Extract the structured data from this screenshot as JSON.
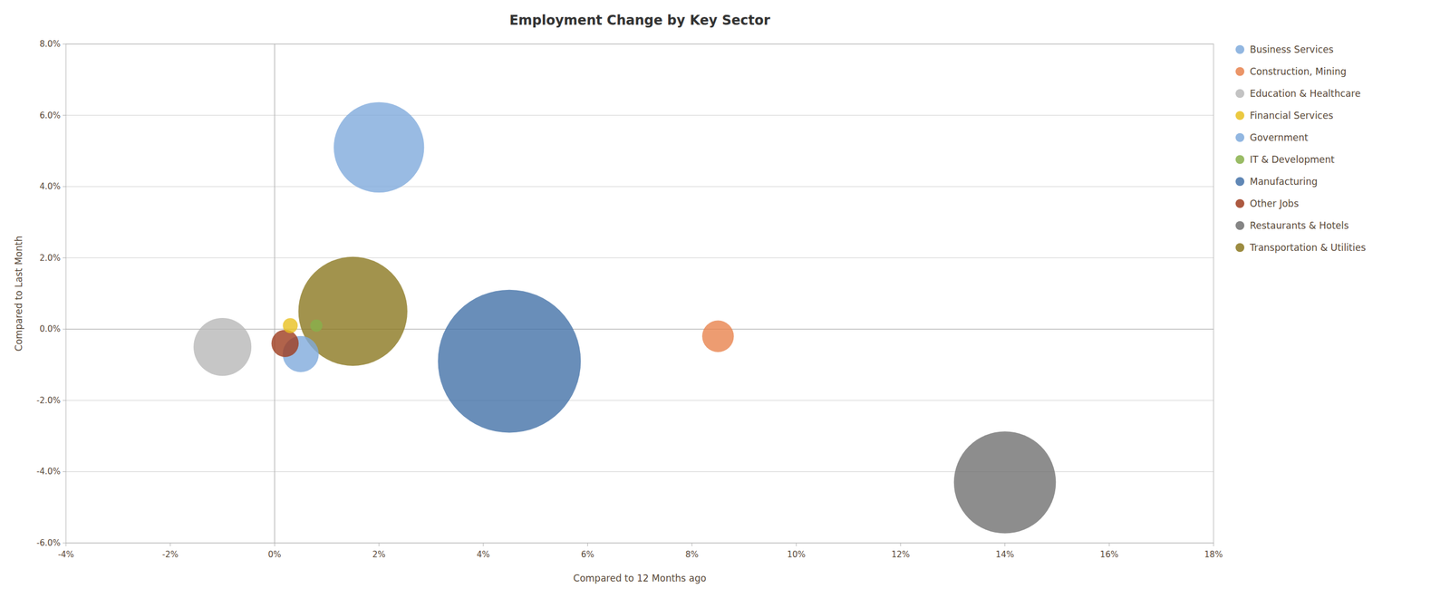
{
  "chart_data": {
    "type": "scatter",
    "title": "Employment Change by Key Sector",
    "xlabel": "Compared to 12 Months ago",
    "ylabel": "Compared to Last Month",
    "xlim": [
      -0.04,
      0.18
    ],
    "ylim": [
      -0.06,
      0.08
    ],
    "xticks": [
      {
        "value": -0.04,
        "label": "-4%"
      },
      {
        "value": -0.02,
        "label": "-2%"
      },
      {
        "value": 0.0,
        "label": "0%"
      },
      {
        "value": 0.02,
        "label": "2%"
      },
      {
        "value": 0.04,
        "label": "4%"
      },
      {
        "value": 0.06,
        "label": "6%"
      },
      {
        "value": 0.08,
        "label": "8%"
      },
      {
        "value": 0.1,
        "label": "10%"
      },
      {
        "value": 0.12,
        "label": "12%"
      },
      {
        "value": 0.14,
        "label": "14%"
      },
      {
        "value": 0.16,
        "label": "16%"
      },
      {
        "value": 0.18,
        "label": "18%"
      }
    ],
    "yticks": [
      {
        "value": -0.06,
        "label": "-6.0%"
      },
      {
        "value": -0.04,
        "label": "-4.0%"
      },
      {
        "value": -0.02,
        "label": "-2.0%"
      },
      {
        "value": 0.0,
        "label": "0.0%"
      },
      {
        "value": 0.02,
        "label": "2.0%"
      },
      {
        "value": 0.04,
        "label": "4.0%"
      },
      {
        "value": 0.06,
        "label": "6.0%"
      },
      {
        "value": 0.08,
        "label": "8.0%"
      }
    ],
    "grid": "y",
    "legend": "right",
    "series": [
      {
        "name": "Business Services",
        "color": "#7faadc",
        "x": [
          0.005
        ],
        "values": [
          -0.007
        ],
        "size": [
          350
        ]
      },
      {
        "name": "Construction, Mining",
        "color": "#e8834e",
        "x": [
          0.085
        ],
        "values": [
          -0.002
        ],
        "size": [
          270
        ]
      },
      {
        "name": "Education & Healthcare",
        "color": "#b8b8b8",
        "x": [
          -0.01
        ],
        "values": [
          -0.005
        ],
        "size": [
          900
        ]
      },
      {
        "name": "Financial Services",
        "color": "#e8c020",
        "x": [
          0.003
        ],
        "values": [
          0.001
        ],
        "size": [
          60
        ]
      },
      {
        "name": "Government",
        "color": "#7faadc",
        "x": [
          0.02
        ],
        "values": [
          0.051
        ],
        "size": [
          2200
        ]
      },
      {
        "name": "IT & Development",
        "color": "#88b04b",
        "x": [
          0.008
        ],
        "values": [
          0.001
        ],
        "size": [
          40
        ]
      },
      {
        "name": "Manufacturing",
        "color": "#4472a8",
        "x": [
          0.045
        ],
        "values": [
          -0.009
        ],
        "size": [
          5500
        ]
      },
      {
        "name": "Other Jobs",
        "color": "#9e3c1e",
        "x": [
          0.002
        ],
        "values": [
          -0.004
        ],
        "size": [
          200
        ]
      },
      {
        "name": "Restaurants & Hotels",
        "color": "#707070",
        "x": [
          0.14
        ],
        "values": [
          -0.043
        ],
        "size": [
          2800
        ]
      },
      {
        "name": "Transportation & Utilities",
        "color": "#8b7820",
        "x": [
          0.015
        ],
        "values": [
          0.005
        ],
        "size": [
          3200
        ]
      }
    ]
  }
}
